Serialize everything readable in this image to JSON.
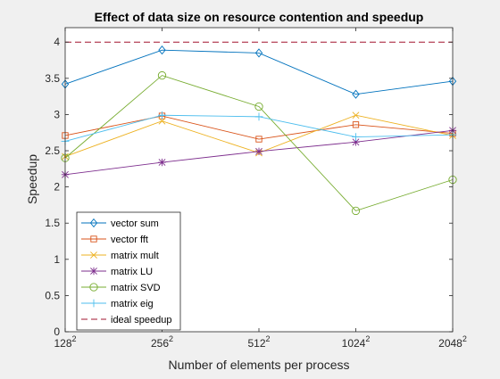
{
  "chart_data": {
    "type": "line",
    "title": "Effect of data size on resource contention and speedup",
    "xlabel": "Number of elements per process",
    "ylabel": "Speedup",
    "x_tick_bases": [
      "128",
      "256",
      "512",
      "1024",
      "2048"
    ],
    "x_tick_exponent": "2",
    "x": [
      1,
      2,
      3,
      4,
      5
    ],
    "ylim": [
      0,
      4.2
    ],
    "y_ticks": [
      0,
      0.5,
      1,
      1.5,
      2,
      2.5,
      3,
      3.5,
      4
    ],
    "y_tick_labels": [
      "0",
      "0.5",
      "1",
      "1.5",
      "2",
      "2.5",
      "3",
      "3.5",
      "4"
    ],
    "grid": false,
    "legend_position": "bottom-left",
    "series": [
      {
        "name": "vector sum",
        "color": "#0072BD",
        "marker": "diamond",
        "values": [
          3.42,
          3.89,
          3.85,
          3.28,
          3.46
        ]
      },
      {
        "name": "vector fft",
        "color": "#D95319",
        "marker": "square",
        "values": [
          2.71,
          2.98,
          2.66,
          2.86,
          2.74
        ]
      },
      {
        "name": "matrix mult",
        "color": "#EDB120",
        "marker": "x",
        "values": [
          2.42,
          2.91,
          2.47,
          2.99,
          2.71
        ]
      },
      {
        "name": "matrix LU",
        "color": "#7E2F8E",
        "marker": "asterisk",
        "values": [
          2.17,
          2.34,
          2.49,
          2.62,
          2.78
        ]
      },
      {
        "name": "matrix SVD",
        "color": "#77AC30",
        "marker": "circle",
        "values": [
          2.4,
          3.54,
          3.11,
          1.67,
          2.1
        ]
      },
      {
        "name": "matrix eig",
        "color": "#4DBEEE",
        "marker": "plus",
        "values": [
          2.63,
          2.99,
          2.97,
          2.69,
          2.72
        ]
      },
      {
        "name": "ideal speedup",
        "color": "#A2142F",
        "marker": "none",
        "dashed": true,
        "values": [
          4,
          4,
          4,
          4,
          4
        ]
      }
    ]
  }
}
